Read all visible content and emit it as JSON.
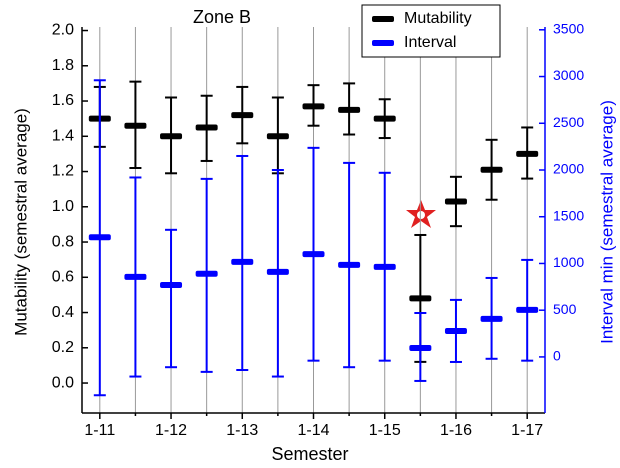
{
  "chart_data": {
    "type": "errorbar",
    "title": "Zone B",
    "x_label": "Semester",
    "y_label": "Mutability (semestral average)",
    "y2_label": "Interval min (semestral average)",
    "categories": [
      "1-11",
      null,
      "1-12",
      null,
      "1-13",
      null,
      "1-14",
      null,
      "1-15",
      null,
      "1-16",
      null,
      "1-17"
    ],
    "series": [
      {
        "name": "Mutability",
        "color": "#000000",
        "values": [
          1.5,
          1.46,
          1.4,
          1.45,
          1.52,
          1.4,
          1.57,
          1.55,
          1.5,
          0.48,
          1.03,
          1.21,
          1.3
        ],
        "lower": [
          1.34,
          1.22,
          1.19,
          1.26,
          1.36,
          1.19,
          1.46,
          1.41,
          1.39,
          0.12,
          0.89,
          1.04,
          1.16
        ],
        "upper": [
          1.68,
          1.71,
          1.62,
          1.63,
          1.68,
          1.62,
          1.69,
          1.7,
          1.61,
          0.84,
          1.17,
          1.38,
          1.45
        ]
      },
      {
        "name": "Interval",
        "color": "#0000ff",
        "axis": "y2",
        "values": [
          1280,
          856,
          770,
          890,
          1017,
          910,
          1100,
          985,
          963,
          96,
          278,
          407,
          503
        ],
        "lower": [
          -410,
          -210,
          -110,
          -160,
          -140,
          -210,
          -40,
          -110,
          -40,
          -257,
          -54,
          -20,
          -40
        ],
        "upper": [
          2960,
          1920,
          1360,
          1905,
          2150,
          2000,
          2237,
          2076,
          1970,
          470,
          610,
          845,
          1038
        ]
      }
    ],
    "ylim": [
      -0.17,
      2.02
    ],
    "yticks": [
      {
        "value": 0,
        "label": "0.0"
      },
      0.2,
      0.4,
      0.6,
      0.8,
      {
        "value": 1,
        "label": "1.0"
      },
      1.2,
      1.4,
      1.6,
      1.8,
      {
        "value": 2,
        "label": "2.0"
      }
    ],
    "y2lim": [
      -600,
      3530
    ],
    "y2ticks": [
      0,
      500,
      1000,
      1500,
      2000,
      2500,
      3000,
      3500
    ],
    "grid": true,
    "legend": "upper right"
  }
}
